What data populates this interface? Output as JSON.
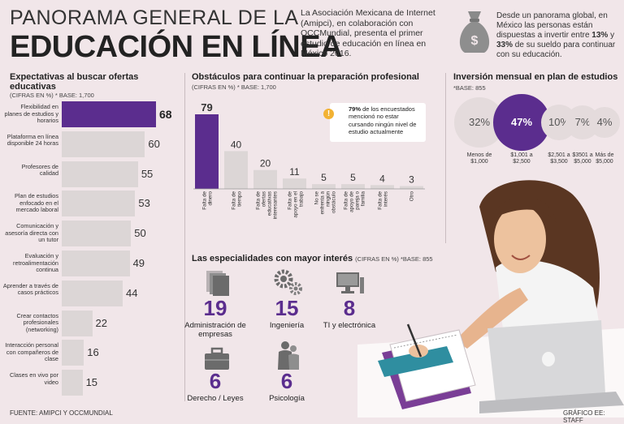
{
  "header": {
    "title_line1": "PANORAMA GENERAL DE LA",
    "title_line2": "EDUCACIÓN EN LÍNEA",
    "intro": "La Asociación Mexicana de Internet (Amipci), en colaboración con OCCMundial, presenta el primer estudio de educación en línea en México 2016.",
    "global_text_pre": "Desde un panorama global, en México las personas están dispuestas a invertir entre ",
    "global_pct1": "13%",
    "global_mid": " y ",
    "global_pct2": "33%",
    "global_text_post": " de su sueldo para continuar con su educación."
  },
  "expectativas": {
    "title": "Expectativas al buscar ofertas educativas",
    "subtitle": "(CIFRAS EN %) * BASE: 1,700"
  },
  "obstaculos": {
    "title": "Obstáculos para continuar la preparación profesional",
    "subtitle": "(CIFRAS EN %) * BASE: 1,700",
    "note_bold": "79%",
    "note_text": " de los encuestados mencionó no estar cursando ningún nivel de estudio actualmente"
  },
  "inversion": {
    "title": "Inversión mensual en plan de estudios",
    "subtitle": "*BASE: 855"
  },
  "especialidades": {
    "title": "Las especialidades con mayor interés",
    "subtitle": "(CIFRAS EN %) *BASE: 855",
    "items": [
      {
        "value": "19",
        "label": "Administración de empresas",
        "icon": "documents-icon"
      },
      {
        "value": "15",
        "label": "Ingeniería",
        "icon": "gears-icon"
      },
      {
        "value": "8",
        "label": "TI y electrónica",
        "icon": "computer-icon"
      },
      {
        "value": "6",
        "label": "Derecho / Leyes",
        "icon": "briefcase-icon"
      },
      {
        "value": "6",
        "label": "Psicología",
        "icon": "people-icon"
      }
    ]
  },
  "footer": {
    "source": "FUENTE: AMIPCI Y OCCMUNDIAL",
    "credit": "GRÁFICO EE: STAFF"
  },
  "colors": {
    "accent": "#5b2d8e",
    "bar": "#dcd6d6",
    "circle": "#e4dbdc",
    "background": "#f1e6e9"
  },
  "chart_data": [
    {
      "type": "bar",
      "orientation": "horizontal",
      "title": "Expectativas al buscar ofertas educativas",
      "categories": [
        "Flexibilidad en planes de estudios y horarios",
        "Plataforma en línea disponible 24 horas",
        "Profesores de calidad",
        "Plan de estudios enfocado en el mercado laboral",
        "Comunicación y asesoría directa con un tutor",
        "Evaluación y retroalimentación continua",
        "Aprender a través de casos prácticos",
        "Crear contactos profesionales (networking)",
        "Interacción personal con compañeros de clase",
        "Clases en vivo por video"
      ],
      "values": [
        68,
        60,
        55,
        53,
        50,
        49,
        44,
        22,
        16,
        15
      ],
      "highlight_index": 0
    },
    {
      "type": "bar",
      "orientation": "vertical",
      "title": "Obstáculos para continuar la preparación profesional",
      "categories": [
        "Falta de dinero",
        "Falta de tiempo",
        "Falta de ofertas educativas interesantes",
        "Falta de apoyo en el trabajo",
        "No se enfrenta a ningún obstáculo",
        "Falta de apoyo de pareja o familia",
        "Falta de interés",
        "Otro"
      ],
      "values": [
        79,
        40,
        20,
        11,
        5,
        5,
        4,
        3
      ],
      "highlight_index": 0
    },
    {
      "type": "bubble",
      "title": "Inversión mensual en plan de estudios",
      "categories": [
        "Menos de $1,000",
        "$1,001 a $2,500",
        "$2,501 a $3,500",
        "$3501 a $5,000",
        "Más de $5,000"
      ],
      "values": [
        32,
        47,
        10,
        7,
        4
      ],
      "highlight_index": 1
    }
  ]
}
